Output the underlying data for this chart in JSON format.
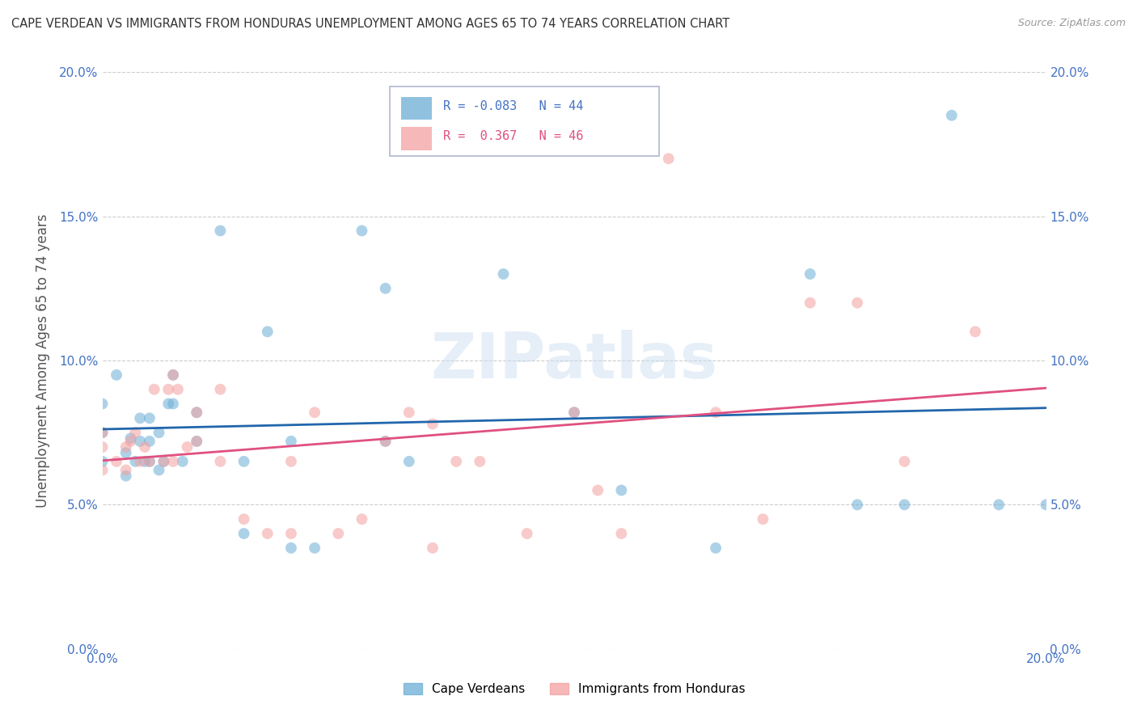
{
  "title": "CAPE VERDEAN VS IMMIGRANTS FROM HONDURAS UNEMPLOYMENT AMONG AGES 65 TO 74 YEARS CORRELATION CHART",
  "source": "Source: ZipAtlas.com",
  "ylabel": "Unemployment Among Ages 65 to 74 years",
  "xlim": [
    0.0,
    0.2
  ],
  "ylim": [
    0.0,
    0.2
  ],
  "ytick_labels": [
    "0.0%",
    "5.0%",
    "10.0%",
    "15.0%",
    "20.0%"
  ],
  "ytick_vals": [
    0.0,
    0.05,
    0.1,
    0.15,
    0.2
  ],
  "xtick_vals": [
    0.0,
    0.2
  ],
  "xtick_labels": [
    "0.0%",
    "20.0%"
  ],
  "legend1_label": "Cape Verdeans",
  "legend2_label": "Immigrants from Honduras",
  "R_blue": -0.083,
  "N_blue": 44,
  "R_pink": 0.367,
  "N_pink": 46,
  "blue_color": "#6baed6",
  "pink_color": "#f4a0a0",
  "blue_line_color": "#2166ac",
  "pink_line_color": "#e05080",
  "blue_scatter_x": [
    0.0,
    0.0,
    0.0,
    0.003,
    0.005,
    0.005,
    0.006,
    0.007,
    0.008,
    0.008,
    0.009,
    0.01,
    0.01,
    0.01,
    0.012,
    0.012,
    0.013,
    0.014,
    0.015,
    0.015,
    0.017,
    0.02,
    0.02,
    0.025,
    0.03,
    0.03,
    0.035,
    0.04,
    0.04,
    0.045,
    0.055,
    0.06,
    0.06,
    0.065,
    0.085,
    0.1,
    0.11,
    0.13,
    0.15,
    0.16,
    0.17,
    0.18,
    0.19,
    0.2
  ],
  "blue_scatter_y": [
    0.065,
    0.075,
    0.085,
    0.095,
    0.06,
    0.068,
    0.073,
    0.065,
    0.072,
    0.08,
    0.065,
    0.065,
    0.072,
    0.08,
    0.062,
    0.075,
    0.065,
    0.085,
    0.085,
    0.095,
    0.065,
    0.072,
    0.082,
    0.145,
    0.04,
    0.065,
    0.11,
    0.035,
    0.072,
    0.035,
    0.145,
    0.072,
    0.125,
    0.065,
    0.13,
    0.082,
    0.055,
    0.035,
    0.13,
    0.05,
    0.05,
    0.185,
    0.05,
    0.05
  ],
  "pink_scatter_x": [
    0.0,
    0.0,
    0.0,
    0.003,
    0.005,
    0.005,
    0.006,
    0.007,
    0.008,
    0.009,
    0.01,
    0.011,
    0.013,
    0.014,
    0.015,
    0.015,
    0.016,
    0.018,
    0.02,
    0.02,
    0.025,
    0.025,
    0.03,
    0.035,
    0.04,
    0.04,
    0.045,
    0.05,
    0.055,
    0.06,
    0.065,
    0.07,
    0.07,
    0.075,
    0.08,
    0.09,
    0.1,
    0.105,
    0.11,
    0.12,
    0.13,
    0.14,
    0.15,
    0.16,
    0.17,
    0.185
  ],
  "pink_scatter_y": [
    0.062,
    0.07,
    0.075,
    0.065,
    0.062,
    0.07,
    0.072,
    0.075,
    0.065,
    0.07,
    0.065,
    0.09,
    0.065,
    0.09,
    0.065,
    0.095,
    0.09,
    0.07,
    0.072,
    0.082,
    0.065,
    0.09,
    0.045,
    0.04,
    0.04,
    0.065,
    0.082,
    0.04,
    0.045,
    0.072,
    0.082,
    0.035,
    0.078,
    0.065,
    0.065,
    0.04,
    0.082,
    0.055,
    0.04,
    0.17,
    0.082,
    0.045,
    0.12,
    0.12,
    0.065,
    0.11
  ]
}
